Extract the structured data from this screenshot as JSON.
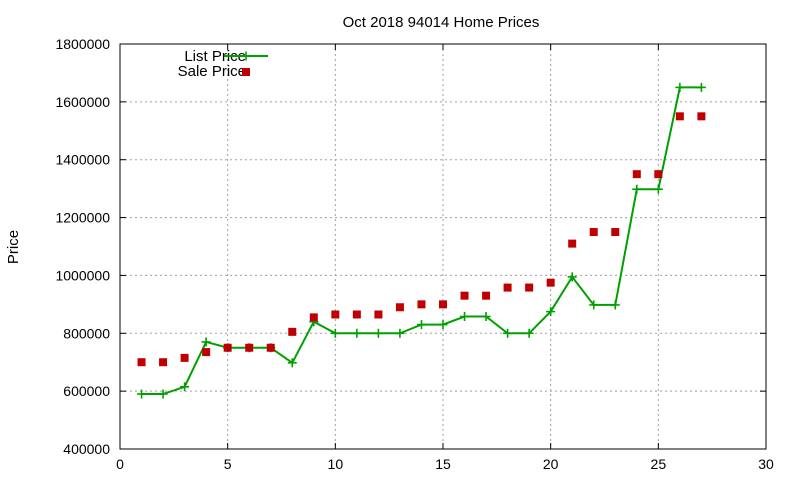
{
  "chart_data": {
    "type": "line",
    "title": "Oct 2018 94014 Home Prices",
    "xlabel": "",
    "ylabel": "Price",
    "xlim": [
      0,
      30
    ],
    "ylim": [
      400000,
      1800000
    ],
    "x_ticks": [
      0,
      5,
      10,
      15,
      20,
      25,
      30
    ],
    "y_ticks": [
      400000,
      600000,
      800000,
      1000000,
      1200000,
      1400000,
      1600000,
      1800000
    ],
    "grid": true,
    "legend_position": "top-left",
    "series": [
      {
        "name": "List Price",
        "style": "line-with-plus-markers",
        "color": "#00a000",
        "x": [
          1,
          2,
          3,
          4,
          5,
          6,
          7,
          8,
          9,
          10,
          11,
          12,
          13,
          14,
          15,
          16,
          17,
          18,
          19,
          20,
          21,
          22,
          23,
          24,
          25,
          26,
          27
        ],
        "values": [
          590000,
          590000,
          615000,
          770000,
          750000,
          750000,
          750000,
          698000,
          840000,
          800000,
          800000,
          800000,
          800000,
          830000,
          830000,
          858000,
          858000,
          800000,
          800000,
          875000,
          995000,
          898000,
          898000,
          1298000,
          1298000,
          1650000,
          1650000
        ]
      },
      {
        "name": "Sale Price",
        "style": "square-markers",
        "color": "#c00000",
        "x": [
          1,
          2,
          3,
          4,
          5,
          6,
          7,
          8,
          9,
          10,
          11,
          12,
          13,
          14,
          15,
          16,
          17,
          18,
          19,
          20,
          21,
          22,
          23,
          24,
          25,
          26,
          27
        ],
        "values": [
          700000,
          700000,
          715000,
          735000,
          750000,
          750000,
          750000,
          805000,
          855000,
          865000,
          865000,
          865000,
          890000,
          900000,
          900000,
          930000,
          930000,
          958000,
          958000,
          975000,
          1110000,
          1150000,
          1150000,
          1350000,
          1350000,
          1550000,
          1550000
        ]
      }
    ]
  }
}
